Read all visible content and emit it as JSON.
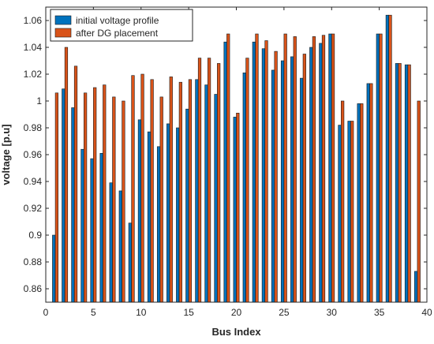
{
  "chart_data": {
    "type": "bar",
    "xlabel": "Bus Index",
    "ylabel": "voltage [p.u]",
    "xlim": [
      0,
      40
    ],
    "ylim": [
      0.85,
      1.07
    ],
    "x_ticks": [
      0,
      5,
      10,
      15,
      20,
      25,
      30,
      35,
      40
    ],
    "y_ticks": [
      0.86,
      0.88,
      0.9,
      0.92,
      0.94,
      0.96,
      0.98,
      1,
      1.02,
      1.04,
      1.06
    ],
    "legend_position": "top-left",
    "x": [
      1,
      2,
      3,
      4,
      5,
      6,
      7,
      8,
      9,
      10,
      11,
      12,
      13,
      14,
      15,
      16,
      17,
      18,
      19,
      20,
      21,
      22,
      23,
      24,
      25,
      26,
      27,
      28,
      29,
      30,
      31,
      32,
      33,
      34,
      35,
      36,
      37,
      38,
      39
    ],
    "series": [
      {
        "name": "initial voltage profile",
        "color": "#0072BD",
        "values": [
          0.9,
          1.009,
          0.995,
          0.964,
          0.957,
          0.961,
          0.939,
          0.933,
          0.909,
          0.986,
          0.977,
          0.966,
          0.983,
          0.98,
          0.994,
          1.016,
          1.012,
          1.005,
          1.044,
          0.988,
          1.021,
          1.044,
          1.039,
          1.023,
          1.03,
          1.033,
          1.017,
          1.04,
          1.043,
          1.05,
          0.982,
          0.985,
          0.998,
          1.013,
          1.05,
          1.064,
          1.028,
          1.027,
          0.873
        ]
      },
      {
        "name": "after DG placement",
        "color": "#D95319",
        "values": [
          1.006,
          1.04,
          1.026,
          1.006,
          1.01,
          1.012,
          1.003,
          1.0,
          1.019,
          1.02,
          1.016,
          1.003,
          1.018,
          1.014,
          1.016,
          1.032,
          1.032,
          1.028,
          1.05,
          0.991,
          1.032,
          1.05,
          1.045,
          1.037,
          1.05,
          1.048,
          1.035,
          1.048,
          1.049,
          1.05,
          1.0,
          0.985,
          0.998,
          1.013,
          1.05,
          1.064,
          1.028,
          1.027,
          1.0
        ]
      }
    ]
  }
}
